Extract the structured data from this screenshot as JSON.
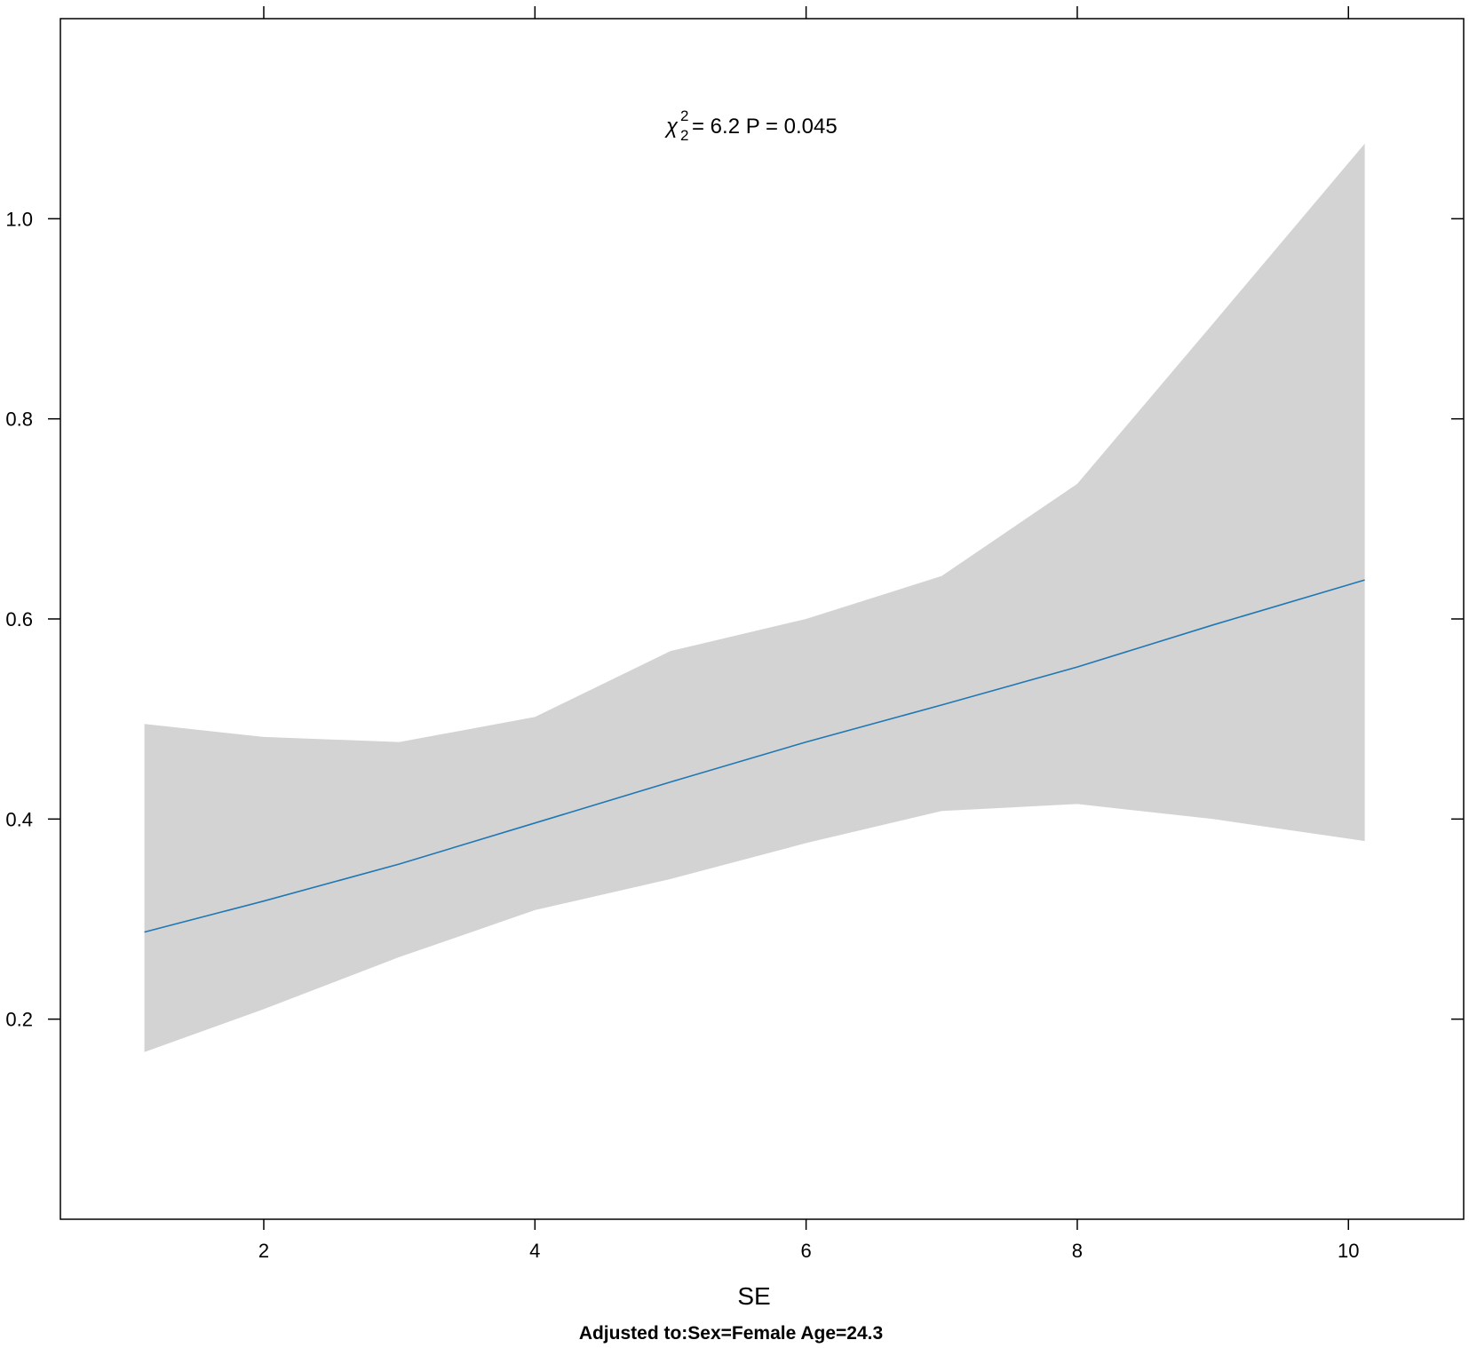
{
  "chart_data": {
    "type": "line",
    "title": "",
    "xlabel": "SE",
    "ylabel": "",
    "footnote": "Adjusted to:Sex=Female Age=24.3",
    "annotation": {
      "chi_symbol": "χ",
      "chi_sup": "2",
      "chi_sub": "2",
      "stat_text": "= 6.2  P = 0.045"
    },
    "xlim": [
      0.5,
      10.85
    ],
    "ylim": [
      0.0,
      1.2
    ],
    "x_ticks": [
      2,
      4,
      6,
      8,
      10
    ],
    "x_tick_labels": [
      "2",
      "4",
      "6",
      "8",
      "10"
    ],
    "y_ticks": [
      0.2,
      0.4,
      0.6,
      0.8,
      1.0
    ],
    "y_tick_labels": [
      "0.2",
      "0.4",
      "0.6",
      "0.8",
      "1.0"
    ],
    "grid": false,
    "line_color": "#1f77b4",
    "band_color": "#d3d3d3",
    "series": [
      {
        "x": [
          1.12,
          2.0,
          3.0,
          4.0,
          5.0,
          6.0,
          7.0,
          8.0,
          9.0,
          10.12
        ],
        "y": [
          0.287,
          0.318,
          0.355,
          0.396,
          0.437,
          0.477,
          0.514,
          0.552,
          0.594,
          0.639
        ],
        "lower": [
          0.167,
          0.21,
          0.262,
          0.309,
          0.34,
          0.376,
          0.408,
          0.415,
          0.4,
          0.378
        ],
        "upper": [
          0.495,
          0.482,
          0.477,
          0.502,
          0.568,
          0.6,
          0.643,
          0.735,
          0.895,
          1.075
        ]
      }
    ]
  }
}
